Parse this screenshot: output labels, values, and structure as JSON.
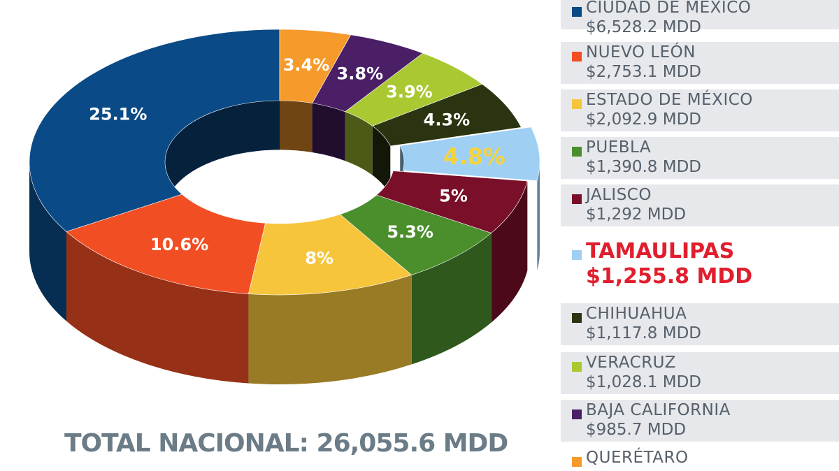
{
  "chart_data": {
    "type": "pie",
    "subtype": "donut-3d",
    "total_label": "TOTAL NACIONAL: 26,055.6 MDD",
    "highlight": "TAMAULIPAS",
    "slices": [
      {
        "name": "CIUDAD DE MÉXICO",
        "amount": "$6,528.2 MDD",
        "value": 6528.2,
        "percent_label": "25.1%",
        "color": "#0a4a86"
      },
      {
        "name": "NUEVO LEÓN",
        "amount": "$2,753.1 MDD",
        "value": 2753.1,
        "percent_label": "10.6%",
        "color": "#f24e23"
      },
      {
        "name": "ESTADO DE MÉXICO",
        "amount": "$2,092.9 MDD",
        "value": 2092.9,
        "percent_label": "8%",
        "color": "#f6c53c"
      },
      {
        "name": "PUEBLA",
        "amount": "$1,390.8 MDD",
        "value": 1390.8,
        "percent_label": "5.3%",
        "color": "#4b8f2d"
      },
      {
        "name": "JALISCO",
        "amount": "$1,292 MDD",
        "value": 1292,
        "percent_label": "5%",
        "color": "#7a0f2a"
      },
      {
        "name": "TAMAULIPAS",
        "amount": "$1,255.8 MDD",
        "value": 1255.8,
        "percent_label": "4.8%",
        "color": "#9fd0f4"
      },
      {
        "name": "CHIHUAHUA",
        "amount": "$1,117.8 MDD",
        "value": 1117.8,
        "percent_label": "4.3%",
        "color": "#2b3410"
      },
      {
        "name": "VERACRUZ",
        "amount": "$1,028.1 MDD",
        "value": 1028.1,
        "percent_label": "3.9%",
        "color": "#a9c832"
      },
      {
        "name": "BAJA CALIFORNIA",
        "amount": "$985.7 MDD",
        "value": 985.7,
        "percent_label": "3.8%",
        "color": "#4a1f66"
      },
      {
        "name": "QUERÉTARO",
        "amount": "",
        "value": 885.9,
        "percent_label": "3.4%",
        "color": "#f59a2b"
      }
    ]
  }
}
